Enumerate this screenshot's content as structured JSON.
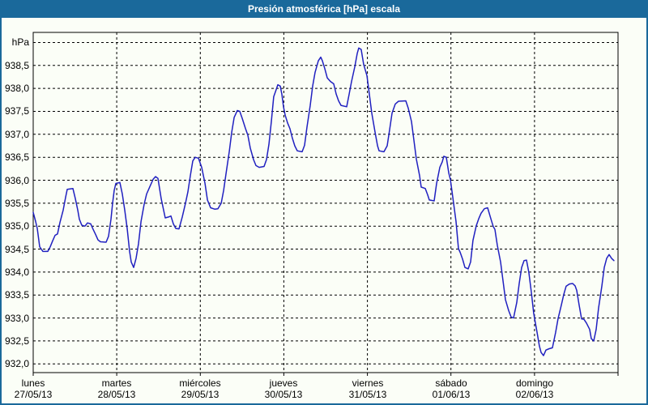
{
  "title": "Presión atmosférica [hPa] escala",
  "window": {
    "frame_color": "#1A699B",
    "background": "#FBFEF7",
    "title_text_color": "#FFFFFF"
  },
  "chart_data": {
    "type": "line",
    "title": "Presión atmosférica [hPa] escala",
    "ylabel": "hPa",
    "xlabel": "",
    "ylim": [
      931.81,
      939.22
    ],
    "xlim_days": [
      0,
      7
    ],
    "grid": "dashed",
    "legend": "none",
    "line_color": "#2020C0",
    "grid_color": "#000000",
    "y_tick_step": 0.5,
    "y_gridline_values": [
      932.0,
      932.5,
      933.0,
      933.5,
      934.0,
      934.5,
      935.0,
      935.5,
      936.0,
      936.5,
      937.0,
      937.5,
      938.0,
      938.5,
      939.0
    ],
    "y_ticks": [
      {
        "v": 938.5,
        "label": "938,5"
      },
      {
        "v": 938.0,
        "label": "938,0"
      },
      {
        "v": 937.5,
        "label": "937,5"
      },
      {
        "v": 937.0,
        "label": "937,0"
      },
      {
        "v": 936.5,
        "label": "936,5"
      },
      {
        "v": 936.0,
        "label": "936,0"
      },
      {
        "v": 935.5,
        "label": "935,5"
      },
      {
        "v": 935.0,
        "label": "935,0"
      },
      {
        "v": 934.5,
        "label": "934,5"
      },
      {
        "v": 934.0,
        "label": "934,0"
      },
      {
        "v": 933.5,
        "label": "933,5"
      },
      {
        "v": 933.0,
        "label": "933,0"
      },
      {
        "v": 932.5,
        "label": "932,5"
      },
      {
        "v": 932.0,
        "label": "932,0"
      }
    ],
    "x_days": [
      {
        "name": "lunes",
        "date": "27/05/13"
      },
      {
        "name": "martes",
        "date": "28/05/13"
      },
      {
        "name": "miércoles",
        "date": "29/05/13"
      },
      {
        "name": "jueves",
        "date": "30/05/13"
      },
      {
        "name": "viernes",
        "date": "31/05/13"
      },
      {
        "name": "sábado",
        "date": "01/06/13"
      },
      {
        "name": "domingo",
        "date": "02/06/13"
      }
    ],
    "series": [
      {
        "name": "Presión atmosférica",
        "unit": "hPa",
        "points": [
          [
            0.0,
            935.3
          ],
          [
            0.029,
            935.1
          ],
          [
            0.048,
            934.95
          ],
          [
            0.078,
            934.55
          ],
          [
            0.116,
            934.45
          ],
          [
            0.175,
            934.45
          ],
          [
            0.204,
            934.55
          ],
          [
            0.233,
            934.68
          ],
          [
            0.262,
            934.8
          ],
          [
            0.291,
            934.83
          ],
          [
            0.32,
            935.08
          ],
          [
            0.359,
            935.35
          ],
          [
            0.388,
            935.63
          ],
          [
            0.407,
            935.8
          ],
          [
            0.475,
            935.82
          ],
          [
            0.504,
            935.6
          ],
          [
            0.533,
            935.35
          ],
          [
            0.553,
            935.15
          ],
          [
            0.582,
            935.02
          ],
          [
            0.62,
            935.0
          ],
          [
            0.65,
            935.07
          ],
          [
            0.688,
            935.05
          ],
          [
            0.717,
            934.93
          ],
          [
            0.747,
            934.82
          ],
          [
            0.776,
            934.7
          ],
          [
            0.805,
            934.66
          ],
          [
            0.873,
            934.65
          ],
          [
            0.902,
            934.78
          ],
          [
            0.931,
            935.15
          ],
          [
            0.95,
            935.5
          ],
          [
            0.97,
            935.78
          ],
          [
            0.989,
            935.93
          ],
          [
            1.037,
            935.95
          ],
          [
            1.066,
            935.7
          ],
          [
            1.096,
            935.35
          ],
          [
            1.125,
            934.95
          ],
          [
            1.154,
            934.45
          ],
          [
            1.173,
            934.22
          ],
          [
            1.202,
            934.1
          ],
          [
            1.231,
            934.3
          ],
          [
            1.26,
            934.62
          ],
          [
            1.29,
            935.1
          ],
          [
            1.328,
            935.48
          ],
          [
            1.357,
            935.7
          ],
          [
            1.396,
            935.86
          ],
          [
            1.435,
            936.02
          ],
          [
            1.464,
            936.08
          ],
          [
            1.493,
            936.04
          ],
          [
            1.532,
            935.6
          ],
          [
            1.58,
            935.18
          ],
          [
            1.619,
            935.2
          ],
          [
            1.648,
            935.22
          ],
          [
            1.677,
            935.05
          ],
          [
            1.706,
            934.95
          ],
          [
            1.745,
            934.94
          ],
          [
            1.784,
            935.2
          ],
          [
            1.823,
            935.5
          ],
          [
            1.852,
            935.75
          ],
          [
            1.881,
            936.1
          ],
          [
            1.91,
            936.42
          ],
          [
            1.939,
            936.5
          ],
          [
            1.978,
            936.48
          ],
          [
            2.017,
            936.28
          ],
          [
            2.056,
            935.93
          ],
          [
            2.085,
            935.57
          ],
          [
            2.123,
            935.4
          ],
          [
            2.172,
            935.37
          ],
          [
            2.211,
            935.38
          ],
          [
            2.25,
            935.5
          ],
          [
            2.279,
            935.78
          ],
          [
            2.308,
            936.15
          ],
          [
            2.347,
            936.63
          ],
          [
            2.376,
            937.05
          ],
          [
            2.405,
            937.37
          ],
          [
            2.443,
            937.52
          ],
          [
            2.472,
            937.5
          ],
          [
            2.501,
            937.35
          ],
          [
            2.54,
            937.13
          ],
          [
            2.569,
            936.98
          ],
          [
            2.598,
            936.7
          ],
          [
            2.637,
            936.45
          ],
          [
            2.666,
            936.32
          ],
          [
            2.705,
            936.28
          ],
          [
            2.763,
            936.3
          ],
          [
            2.792,
            936.45
          ],
          [
            2.821,
            936.78
          ],
          [
            2.85,
            937.28
          ],
          [
            2.879,
            937.82
          ],
          [
            2.908,
            937.97
          ],
          [
            2.928,
            938.08
          ],
          [
            2.957,
            938.05
          ],
          [
            2.976,
            937.87
          ],
          [
            2.996,
            937.6
          ],
          [
            3.015,
            937.42
          ],
          [
            3.044,
            937.25
          ],
          [
            3.073,
            937.12
          ],
          [
            3.102,
            936.92
          ],
          [
            3.131,
            936.75
          ],
          [
            3.161,
            936.64
          ],
          [
            3.219,
            936.62
          ],
          [
            3.248,
            936.76
          ],
          [
            3.277,
            937.16
          ],
          [
            3.316,
            937.63
          ],
          [
            3.345,
            938.05
          ],
          [
            3.374,
            938.35
          ],
          [
            3.413,
            938.6
          ],
          [
            3.442,
            938.68
          ],
          [
            3.461,
            938.6
          ],
          [
            3.49,
            938.43
          ],
          [
            3.519,
            938.23
          ],
          [
            3.558,
            938.15
          ],
          [
            3.597,
            938.1
          ],
          [
            3.626,
            937.88
          ],
          [
            3.655,
            937.73
          ],
          [
            3.684,
            937.63
          ],
          [
            3.752,
            937.6
          ],
          [
            3.781,
            937.87
          ],
          [
            3.81,
            938.15
          ],
          [
            3.849,
            938.47
          ],
          [
            3.878,
            938.76
          ],
          [
            3.897,
            938.88
          ],
          [
            3.926,
            938.85
          ],
          [
            3.956,
            938.52
          ],
          [
            3.994,
            938.28
          ],
          [
            4.024,
            937.87
          ],
          [
            4.053,
            937.46
          ],
          [
            4.091,
            937.05
          ],
          [
            4.121,
            936.75
          ],
          [
            4.14,
            936.64
          ],
          [
            4.198,
            936.62
          ],
          [
            4.237,
            936.75
          ],
          [
            4.266,
            937.1
          ],
          [
            4.295,
            937.46
          ],
          [
            4.334,
            937.66
          ],
          [
            4.373,
            937.72
          ],
          [
            4.46,
            937.73
          ],
          [
            4.489,
            937.57
          ],
          [
            4.528,
            937.28
          ],
          [
            4.557,
            936.87
          ],
          [
            4.586,
            936.46
          ],
          [
            4.625,
            936.1
          ],
          [
            4.644,
            935.85
          ],
          [
            4.693,
            935.82
          ],
          [
            4.722,
            935.68
          ],
          [
            4.741,
            935.57
          ],
          [
            4.799,
            935.55
          ],
          [
            4.828,
            935.93
          ],
          [
            4.867,
            936.28
          ],
          [
            4.896,
            936.4
          ],
          [
            4.915,
            936.52
          ],
          [
            4.945,
            936.5
          ],
          [
            4.974,
            936.16
          ],
          [
            4.993,
            936.02
          ],
          [
            5.022,
            935.63
          ],
          [
            5.061,
            935.1
          ],
          [
            5.09,
            934.51
          ],
          [
            5.11,
            934.43
          ],
          [
            5.139,
            934.28
          ],
          [
            5.168,
            934.1
          ],
          [
            5.206,
            934.07
          ],
          [
            5.235,
            934.22
          ],
          [
            5.264,
            934.69
          ],
          [
            5.303,
            935.01
          ],
          [
            5.332,
            935.16
          ],
          [
            5.361,
            935.28
          ],
          [
            5.4,
            935.38
          ],
          [
            5.439,
            935.4
          ],
          [
            5.478,
            935.16
          ],
          [
            5.507,
            934.99
          ],
          [
            5.526,
            934.93
          ],
          [
            5.555,
            934.58
          ],
          [
            5.594,
            934.22
          ],
          [
            5.623,
            933.81
          ],
          [
            5.652,
            933.4
          ],
          [
            5.691,
            933.16
          ],
          [
            5.72,
            933.02
          ],
          [
            5.749,
            933.0
          ],
          [
            5.788,
            933.34
          ],
          [
            5.817,
            933.75
          ],
          [
            5.846,
            934.1
          ],
          [
            5.875,
            934.25
          ],
          [
            5.904,
            934.26
          ],
          [
            5.933,
            933.99
          ],
          [
            5.962,
            933.57
          ],
          [
            5.991,
            933.1
          ],
          [
            6.03,
            932.69
          ],
          [
            6.059,
            932.39
          ],
          [
            6.079,
            932.25
          ],
          [
            6.108,
            932.18
          ],
          [
            6.137,
            932.3
          ],
          [
            6.176,
            932.33
          ],
          [
            6.215,
            932.35
          ],
          [
            6.253,
            932.69
          ],
          [
            6.282,
            932.98
          ],
          [
            6.321,
            933.28
          ],
          [
            6.35,
            933.51
          ],
          [
            6.379,
            933.69
          ],
          [
            6.418,
            933.74
          ],
          [
            6.457,
            933.75
          ],
          [
            6.486,
            933.7
          ],
          [
            6.506,
            933.6
          ],
          [
            6.535,
            933.28
          ],
          [
            6.564,
            932.98
          ],
          [
            6.593,
            932.97
          ],
          [
            6.622,
            932.89
          ],
          [
            6.661,
            932.75
          ],
          [
            6.68,
            932.55
          ],
          [
            6.709,
            932.5
          ],
          [
            6.738,
            932.75
          ],
          [
            6.767,
            933.22
          ],
          [
            6.806,
            933.69
          ],
          [
            6.835,
            934.1
          ],
          [
            6.864,
            934.3
          ],
          [
            6.893,
            934.38
          ],
          [
            6.922,
            934.3
          ],
          [
            6.951,
            934.25
          ]
        ]
      }
    ]
  }
}
